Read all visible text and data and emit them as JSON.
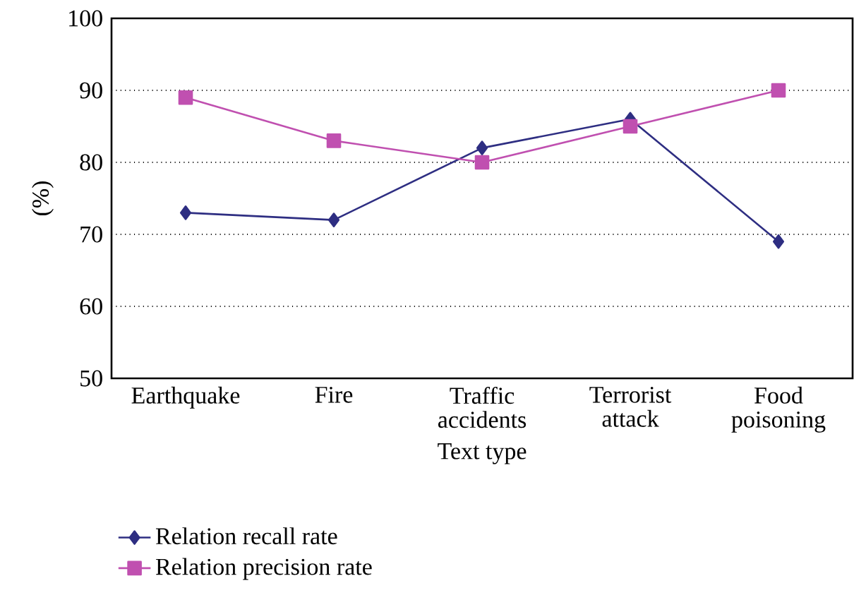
{
  "chart_data": {
    "type": "line",
    "categories": [
      "Earthquake",
      "Fire",
      "Traffic accidents",
      "Terrorist attack",
      "Food poisoning"
    ],
    "series": [
      {
        "name": "Relation recall rate",
        "color": "#2e2e82",
        "marker": "diamond",
        "values": [
          73,
          72,
          82,
          86,
          69
        ]
      },
      {
        "name": "Relation precision rate",
        "color": "#c050b0",
        "marker": "square",
        "values": [
          89,
          83,
          80,
          85,
          90
        ]
      }
    ],
    "xlabel": "Text type",
    "ylabel": "(%)",
    "ylim": [
      50,
      100
    ],
    "yticks": [
      50,
      60,
      70,
      80,
      90,
      100
    ],
    "grid": "y",
    "legend": "bottom",
    "line_style": "solid"
  }
}
